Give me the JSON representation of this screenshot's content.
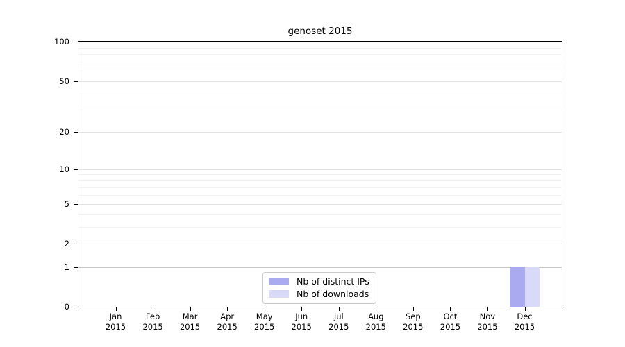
{
  "chart_data": {
    "type": "bar",
    "title": "genoset 2015",
    "x_axis": {
      "months": [
        "Jan",
        "Feb",
        "Mar",
        "Apr",
        "May",
        "Jun",
        "Jul",
        "Aug",
        "Sep",
        "Oct",
        "Nov",
        "Dec"
      ],
      "year": "2015"
    },
    "y_axis": {
      "scale": "log1p",
      "range": [
        0,
        100
      ],
      "ticks": [
        100,
        50,
        20,
        10,
        5,
        2,
        1,
        0
      ],
      "minor_ticks": [
        3,
        4,
        6,
        7,
        8,
        9,
        30,
        40,
        60,
        70,
        80,
        90
      ]
    },
    "series": [
      {
        "name": "Nb of distinct IPs",
        "color": "#aaaaf0",
        "values": [
          0,
          0,
          0,
          0,
          0,
          0,
          0,
          0,
          0,
          0,
          0,
          1
        ]
      },
      {
        "name": "Nb of downloads",
        "color": "#d9d9fa",
        "values": [
          0,
          0,
          0,
          0,
          0,
          0,
          0,
          0,
          0,
          0,
          0,
          1
        ]
      }
    ],
    "legend": {
      "position": "bottom-center",
      "entries": [
        "Nb of distinct IPs",
        "Nb of downloads"
      ]
    }
  }
}
